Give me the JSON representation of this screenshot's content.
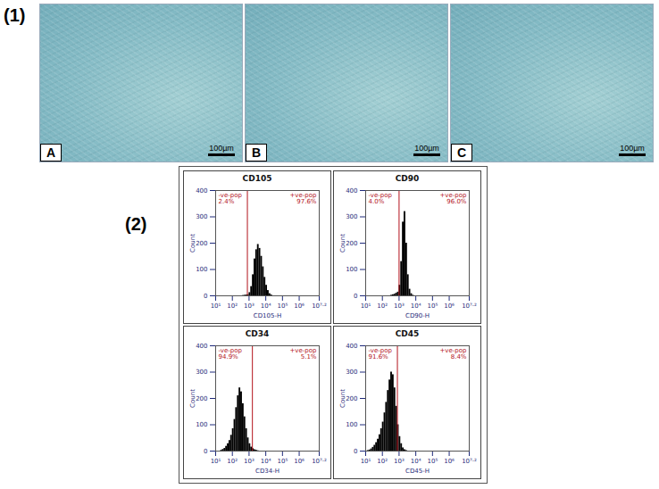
{
  "panel_labels": [
    "(1)",
    "(2)"
  ],
  "images": [
    {
      "letter": "A",
      "scale_bar": "100µm"
    },
    {
      "letter": "B",
      "scale_bar": "100µm"
    },
    {
      "letter": "C",
      "scale_bar": "100µm"
    }
  ],
  "chart_data": [
    {
      "type": "histogram",
      "title": "CD105",
      "x_label": "CD105-H",
      "y_label": "Count",
      "log": "x",
      "xlim": [
        10,
        15848932
      ],
      "xticks": [
        {
          "value": 10,
          "label": "10¹"
        },
        {
          "value": 100,
          "label": "10²"
        },
        {
          "value": 1000,
          "label": "10³"
        },
        {
          "value": 10000,
          "label": "10⁴"
        },
        {
          "value": 100000,
          "label": "10⁵"
        },
        {
          "value": 1000000,
          "label": "10⁶"
        },
        {
          "value": 15848932,
          "label": "10⁷·²"
        }
      ],
      "ylim": [
        0,
        400
      ],
      "yticks": [
        0,
        100,
        200,
        300,
        400
      ],
      "color": "#000000",
      "bins": [
        398,
        501,
        631,
        794,
        1000,
        1259,
        1585,
        1995,
        2512,
        3162,
        3981,
        5012,
        6310,
        7943,
        10000,
        12589,
        15849,
        19953,
        25119
      ],
      "counts": [
        1,
        2,
        3,
        4,
        12,
        35,
        80,
        140,
        175,
        195,
        180,
        150,
        110,
        70,
        40,
        20,
        8,
        3
      ],
      "gate": 794,
      "regions": [
        {
          "label": "-ve-pop",
          "text": "2.4%"
        },
        {
          "label": "+ve-pop",
          "text": "97.6%"
        }
      ]
    },
    {
      "type": "histogram",
      "title": "CD90",
      "x_label": "CD90-H",
      "y_label": "Count",
      "log": "x",
      "xlim": [
        10,
        15848932
      ],
      "xticks": [
        {
          "value": 10,
          "label": "10¹"
        },
        {
          "value": 100,
          "label": "10²"
        },
        {
          "value": 1000,
          "label": "10³"
        },
        {
          "value": 10000,
          "label": "10⁴"
        },
        {
          "value": 100000,
          "label": "10⁵"
        },
        {
          "value": 1000000,
          "label": "10⁶"
        },
        {
          "value": 15848932,
          "label": "10⁷·²"
        }
      ],
      "ylim": [
        0,
        400
      ],
      "yticks": [
        0,
        100,
        200,
        300,
        400
      ],
      "color": "#000000",
      "bins": [
        316,
        398,
        501,
        631,
        794,
        1000,
        1259,
        1585,
        1995,
        2512,
        3162,
        3981,
        5012,
        6310,
        7943
      ],
      "counts": [
        2,
        4,
        6,
        10,
        14,
        40,
        130,
        280,
        320,
        200,
        80,
        25,
        8,
        2
      ],
      "gate": 1000,
      "regions": [
        {
          "label": "-ve-pop",
          "text": "4.0%"
        },
        {
          "label": "+ve-pop",
          "text": "96.0%"
        }
      ]
    },
    {
      "type": "histogram",
      "title": "CD34",
      "x_label": "CD34-H",
      "y_label": "Count",
      "log": "x",
      "xlim": [
        10,
        15848932
      ],
      "xticks": [
        {
          "value": 10,
          "label": "10¹"
        },
        {
          "value": 100,
          "label": "10²"
        },
        {
          "value": 1000,
          "label": "10³"
        },
        {
          "value": 10000,
          "label": "10⁴"
        },
        {
          "value": 100000,
          "label": "10⁵"
        },
        {
          "value": 1000000,
          "label": "10⁶"
        },
        {
          "value": 15848932,
          "label": "10⁷·²"
        }
      ],
      "ylim": [
        0,
        400
      ],
      "yticks": [
        0,
        100,
        200,
        300,
        400
      ],
      "color": "#000000",
      "bins": [
        20,
        25.1,
        31.6,
        39.8,
        50.1,
        63.1,
        79.4,
        100,
        126,
        158,
        200,
        251,
        316,
        398,
        501,
        631,
        794,
        1000,
        1259,
        1585,
        1995,
        2512,
        3162,
        3981
      ],
      "counts": [
        3,
        6,
        10,
        18,
        28,
        40,
        60,
        85,
        120,
        165,
        210,
        240,
        225,
        180,
        130,
        85,
        50,
        28,
        15,
        9,
        5,
        3,
        1
      ],
      "gate": 1585,
      "regions": [
        {
          "label": "-ve-pop",
          "text": "94.9%"
        },
        {
          "label": "+ve-pop",
          "text": "5.1%"
        }
      ]
    },
    {
      "type": "histogram",
      "title": "CD45",
      "x_label": "CD45-H",
      "y_label": "Count",
      "log": "x",
      "xlim": [
        10,
        15848932
      ],
      "xticks": [
        {
          "value": 10,
          "label": "10¹"
        },
        {
          "value": 100,
          "label": "10²"
        },
        {
          "value": 1000,
          "label": "10³"
        },
        {
          "value": 10000,
          "label": "10⁴"
        },
        {
          "value": 100000,
          "label": "10⁵"
        },
        {
          "value": 1000000,
          "label": "10⁶"
        },
        {
          "value": 15848932,
          "label": "10⁷·²"
        }
      ],
      "ylim": [
        0,
        400
      ],
      "yticks": [
        0,
        100,
        200,
        300,
        400
      ],
      "color": "#000000",
      "bins": [
        12.6,
        15.8,
        20,
        25.1,
        31.6,
        39.8,
        50.1,
        63.1,
        79.4,
        100,
        126,
        158,
        200,
        251,
        316,
        398,
        501,
        631,
        794,
        1000,
        1259,
        1585,
        1995,
        2512,
        3162
      ],
      "counts": [
        2,
        4,
        8,
        14,
        22,
        32,
        45,
        62,
        85,
        110,
        145,
        185,
        230,
        270,
        300,
        290,
        240,
        170,
        100,
        55,
        28,
        12,
        5,
        2
      ],
      "gate": 794,
      "regions": [
        {
          "label": "-ve-pop",
          "text": "91.6%"
        },
        {
          "label": "+ve-pop",
          "text": "8.4%"
        }
      ]
    }
  ]
}
